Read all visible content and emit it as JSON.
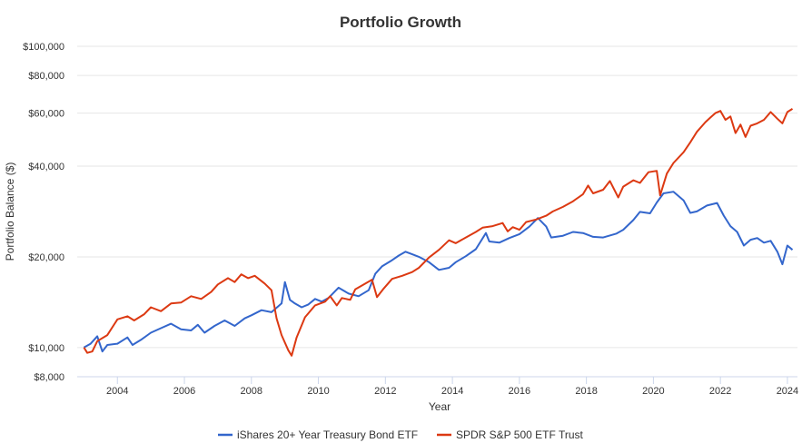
{
  "chart_data": {
    "type": "line",
    "title": "Portfolio Growth",
    "xlabel": "Year",
    "ylabel": "Portfolio Balance ($)",
    "y_scale": "log",
    "ylim": [
      8000,
      100000
    ],
    "xlim": [
      2002.8,
      2024.3
    ],
    "y_ticks": [
      {
        "value": 8000,
        "label": "$8,000"
      },
      {
        "value": 10000,
        "label": "$10,000"
      },
      {
        "value": 20000,
        "label": "$20,000"
      },
      {
        "value": 40000,
        "label": "$40,000"
      },
      {
        "value": 60000,
        "label": "$60,000"
      },
      {
        "value": 80000,
        "label": "$80,000"
      },
      {
        "value": 100000,
        "label": "$100,000"
      }
    ],
    "x_ticks": [
      {
        "value": 2004,
        "label": "2004"
      },
      {
        "value": 2006,
        "label": "2006"
      },
      {
        "value": 2008,
        "label": "2008"
      },
      {
        "value": 2010,
        "label": "2010"
      },
      {
        "value": 2012,
        "label": "2012"
      },
      {
        "value": 2014,
        "label": "2014"
      },
      {
        "value": 2016,
        "label": "2016"
      },
      {
        "value": 2018,
        "label": "2018"
      },
      {
        "value": 2020,
        "label": "2020"
      },
      {
        "value": 2022,
        "label": "2022"
      },
      {
        "value": 2024,
        "label": "2024"
      }
    ],
    "grid": "horizontal",
    "legend_position": "bottom-center",
    "series": [
      {
        "name": "iShares 20+ Year Treasury Bond ETF",
        "color": "#3366cc",
        "points": [
          [
            2003.0,
            10000
          ],
          [
            2003.2,
            10300
          ],
          [
            2003.4,
            10900
          ],
          [
            2003.55,
            9700
          ],
          [
            2003.7,
            10200
          ],
          [
            2004.0,
            10300
          ],
          [
            2004.3,
            10800
          ],
          [
            2004.45,
            10200
          ],
          [
            2004.7,
            10600
          ],
          [
            2005.0,
            11200
          ],
          [
            2005.3,
            11600
          ],
          [
            2005.6,
            12000
          ],
          [
            2005.9,
            11500
          ],
          [
            2006.2,
            11400
          ],
          [
            2006.4,
            11900
          ],
          [
            2006.6,
            11200
          ],
          [
            2006.9,
            11800
          ],
          [
            2007.2,
            12300
          ],
          [
            2007.5,
            11800
          ],
          [
            2007.8,
            12500
          ],
          [
            2008.0,
            12800
          ],
          [
            2008.3,
            13300
          ],
          [
            2008.6,
            13100
          ],
          [
            2008.9,
            14000
          ],
          [
            2009.0,
            16500
          ],
          [
            2009.15,
            14400
          ],
          [
            2009.3,
            14000
          ],
          [
            2009.5,
            13600
          ],
          [
            2009.7,
            13900
          ],
          [
            2009.9,
            14500
          ],
          [
            2010.1,
            14200
          ],
          [
            2010.3,
            14600
          ],
          [
            2010.6,
            15800
          ],
          [
            2010.9,
            15100
          ],
          [
            2011.2,
            14800
          ],
          [
            2011.5,
            15500
          ],
          [
            2011.7,
            17600
          ],
          [
            2011.9,
            18600
          ],
          [
            2012.2,
            19500
          ],
          [
            2012.4,
            20200
          ],
          [
            2012.6,
            20800
          ],
          [
            2012.8,
            20400
          ],
          [
            2013.0,
            20000
          ],
          [
            2013.3,
            19200
          ],
          [
            2013.6,
            18100
          ],
          [
            2013.9,
            18400
          ],
          [
            2014.1,
            19200
          ],
          [
            2014.4,
            20100
          ],
          [
            2014.7,
            21200
          ],
          [
            2015.0,
            24000
          ],
          [
            2015.1,
            22500
          ],
          [
            2015.4,
            22300
          ],
          [
            2015.7,
            23100
          ],
          [
            2016.0,
            23800
          ],
          [
            2016.3,
            25200
          ],
          [
            2016.55,
            26900
          ],
          [
            2016.8,
            25200
          ],
          [
            2016.95,
            23200
          ],
          [
            2017.3,
            23500
          ],
          [
            2017.6,
            24200
          ],
          [
            2017.9,
            24000
          ],
          [
            2018.2,
            23300
          ],
          [
            2018.5,
            23200
          ],
          [
            2018.9,
            23900
          ],
          [
            2019.1,
            24600
          ],
          [
            2019.4,
            26500
          ],
          [
            2019.6,
            28200
          ],
          [
            2019.9,
            27900
          ],
          [
            2020.1,
            30300
          ],
          [
            2020.3,
            32500
          ],
          [
            2020.6,
            32900
          ],
          [
            2020.9,
            30800
          ],
          [
            2021.1,
            28000
          ],
          [
            2021.3,
            28300
          ],
          [
            2021.6,
            29600
          ],
          [
            2021.9,
            30200
          ],
          [
            2022.1,
            27400
          ],
          [
            2022.3,
            25300
          ],
          [
            2022.5,
            24200
          ],
          [
            2022.7,
            21800
          ],
          [
            2022.9,
            22800
          ],
          [
            2023.1,
            23100
          ],
          [
            2023.3,
            22300
          ],
          [
            2023.5,
            22600
          ],
          [
            2023.7,
            20800
          ],
          [
            2023.85,
            18900
          ],
          [
            2024.0,
            21800
          ],
          [
            2024.15,
            21100
          ]
        ]
      },
      {
        "name": "SPDR S&P 500 ETF Trust",
        "color": "#dc3912",
        "points": [
          [
            2003.0,
            10000
          ],
          [
            2003.1,
            9600
          ],
          [
            2003.25,
            9700
          ],
          [
            2003.4,
            10500
          ],
          [
            2003.7,
            11000
          ],
          [
            2004.0,
            12400
          ],
          [
            2004.3,
            12700
          ],
          [
            2004.5,
            12300
          ],
          [
            2004.8,
            12900
          ],
          [
            2005.0,
            13600
          ],
          [
            2005.3,
            13200
          ],
          [
            2005.6,
            14000
          ],
          [
            2005.9,
            14100
          ],
          [
            2006.2,
            14800
          ],
          [
            2006.5,
            14500
          ],
          [
            2006.8,
            15300
          ],
          [
            2007.0,
            16200
          ],
          [
            2007.3,
            17000
          ],
          [
            2007.5,
            16500
          ],
          [
            2007.7,
            17500
          ],
          [
            2007.9,
            17000
          ],
          [
            2008.1,
            17300
          ],
          [
            2008.4,
            16300
          ],
          [
            2008.6,
            15500
          ],
          [
            2008.75,
            12500
          ],
          [
            2008.9,
            11000
          ],
          [
            2009.1,
            9800
          ],
          [
            2009.2,
            9400
          ],
          [
            2009.35,
            10800
          ],
          [
            2009.6,
            12600
          ],
          [
            2009.9,
            13800
          ],
          [
            2010.2,
            14200
          ],
          [
            2010.35,
            14800
          ],
          [
            2010.55,
            13800
          ],
          [
            2010.7,
            14600
          ],
          [
            2010.95,
            14400
          ],
          [
            2011.1,
            15600
          ],
          [
            2011.4,
            16300
          ],
          [
            2011.6,
            16800
          ],
          [
            2011.75,
            14700
          ],
          [
            2011.95,
            15700
          ],
          [
            2012.2,
            16900
          ],
          [
            2012.5,
            17300
          ],
          [
            2012.8,
            17800
          ],
          [
            2013.0,
            18400
          ],
          [
            2013.3,
            19900
          ],
          [
            2013.6,
            21100
          ],
          [
            2013.9,
            22700
          ],
          [
            2014.1,
            22200
          ],
          [
            2014.4,
            23200
          ],
          [
            2014.7,
            24200
          ],
          [
            2014.9,
            25000
          ],
          [
            2015.2,
            25300
          ],
          [
            2015.5,
            25900
          ],
          [
            2015.65,
            24300
          ],
          [
            2015.8,
            25100
          ],
          [
            2016.0,
            24600
          ],
          [
            2016.2,
            26100
          ],
          [
            2016.5,
            26600
          ],
          [
            2016.8,
            27400
          ],
          [
            2017.0,
            28300
          ],
          [
            2017.3,
            29300
          ],
          [
            2017.6,
            30600
          ],
          [
            2017.9,
            32300
          ],
          [
            2018.05,
            34500
          ],
          [
            2018.2,
            32500
          ],
          [
            2018.5,
            33400
          ],
          [
            2018.7,
            35700
          ],
          [
            2018.95,
            31500
          ],
          [
            2019.1,
            34200
          ],
          [
            2019.4,
            35900
          ],
          [
            2019.6,
            35200
          ],
          [
            2019.85,
            38200
          ],
          [
            2020.1,
            38600
          ],
          [
            2020.2,
            32000
          ],
          [
            2020.4,
            37800
          ],
          [
            2020.6,
            41000
          ],
          [
            2020.9,
            44500
          ],
          [
            2021.1,
            48000
          ],
          [
            2021.3,
            52000
          ],
          [
            2021.55,
            56000
          ],
          [
            2021.7,
            58000
          ],
          [
            2021.85,
            60000
          ],
          [
            2022.0,
            61000
          ],
          [
            2022.15,
            57000
          ],
          [
            2022.3,
            58500
          ],
          [
            2022.45,
            51500
          ],
          [
            2022.6,
            55000
          ],
          [
            2022.75,
            50000
          ],
          [
            2022.9,
            54500
          ],
          [
            2023.1,
            55500
          ],
          [
            2023.3,
            57000
          ],
          [
            2023.5,
            60500
          ],
          [
            2023.7,
            57500
          ],
          [
            2023.85,
            55500
          ],
          [
            2024.0,
            60500
          ],
          [
            2024.15,
            62000
          ]
        ]
      }
    ]
  }
}
